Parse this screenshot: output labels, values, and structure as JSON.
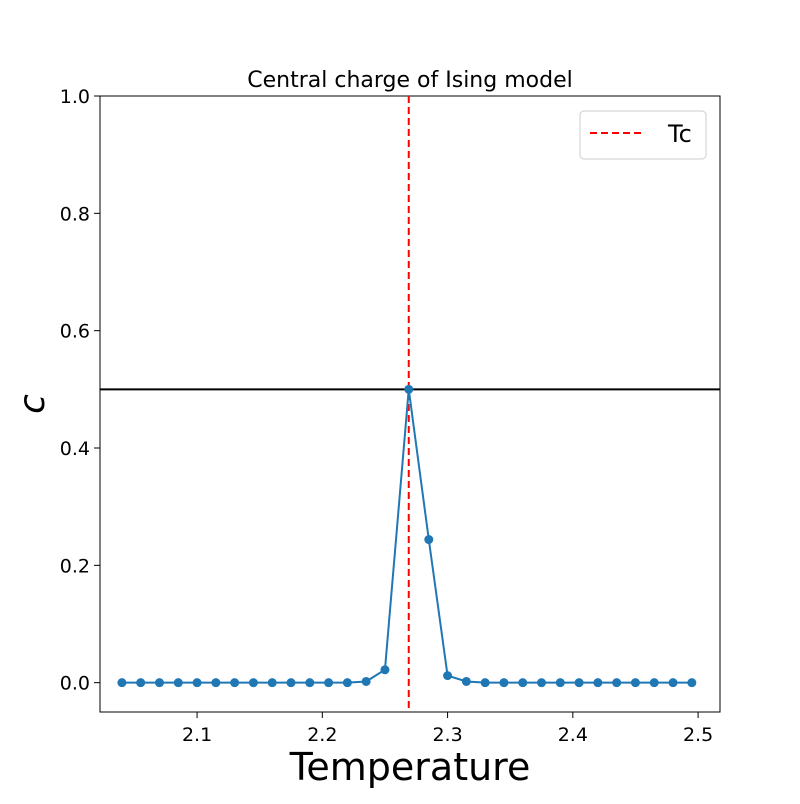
{
  "chart_data": {
    "type": "line",
    "title": "Central charge of Ising model",
    "xlabel": "Temperature",
    "ylabel": "c",
    "xlim": [
      2.0225,
      2.5175
    ],
    "ylim": [
      -0.05,
      1.0
    ],
    "xticks": [
      2.1,
      2.2,
      2.3,
      2.4,
      2.5
    ],
    "xtick_labels": [
      "2.1",
      "2.2",
      "2.3",
      "2.4",
      "2.5"
    ],
    "yticks": [
      0.0,
      0.2,
      0.4,
      0.6,
      0.8,
      1.0
    ],
    "ytick_labels": [
      "0.0",
      "0.2",
      "0.4",
      "0.6",
      "0.8",
      "1.0"
    ],
    "grid": false,
    "legend": {
      "position": "upper right",
      "entries": [
        "Tc"
      ]
    },
    "series": [
      {
        "marker": "circle",
        "color": "#1f77b4",
        "x": [
          2.04,
          2.055,
          2.07,
          2.085,
          2.1,
          2.115,
          2.13,
          2.145,
          2.16,
          2.175,
          2.19,
          2.205,
          2.22,
          2.235,
          2.25,
          2.269,
          2.285,
          2.3,
          2.315,
          2.33,
          2.345,
          2.36,
          2.375,
          2.39,
          2.405,
          2.42,
          2.435,
          2.45,
          2.465,
          2.48,
          2.495
        ],
        "y": [
          0.0,
          0.0,
          0.0,
          0.0,
          0.0,
          0.0,
          0.0,
          0.0,
          0.0,
          0.0,
          0.0,
          0.0,
          0.0,
          0.002,
          0.022,
          0.5,
          0.244,
          0.012,
          0.002,
          0.0,
          0.0,
          0.0,
          0.0,
          0.0,
          0.0,
          0.0,
          0.0,
          0.0,
          0.0,
          0.0,
          0.0
        ]
      }
    ],
    "reference_lines": [
      {
        "orientation": "vertical",
        "x": 2.269,
        "style": "dashed",
        "color": "#ff0000",
        "legend": "Tc"
      },
      {
        "orientation": "horizontal",
        "y": 0.5,
        "style": "solid",
        "color": "#000000"
      }
    ]
  }
}
